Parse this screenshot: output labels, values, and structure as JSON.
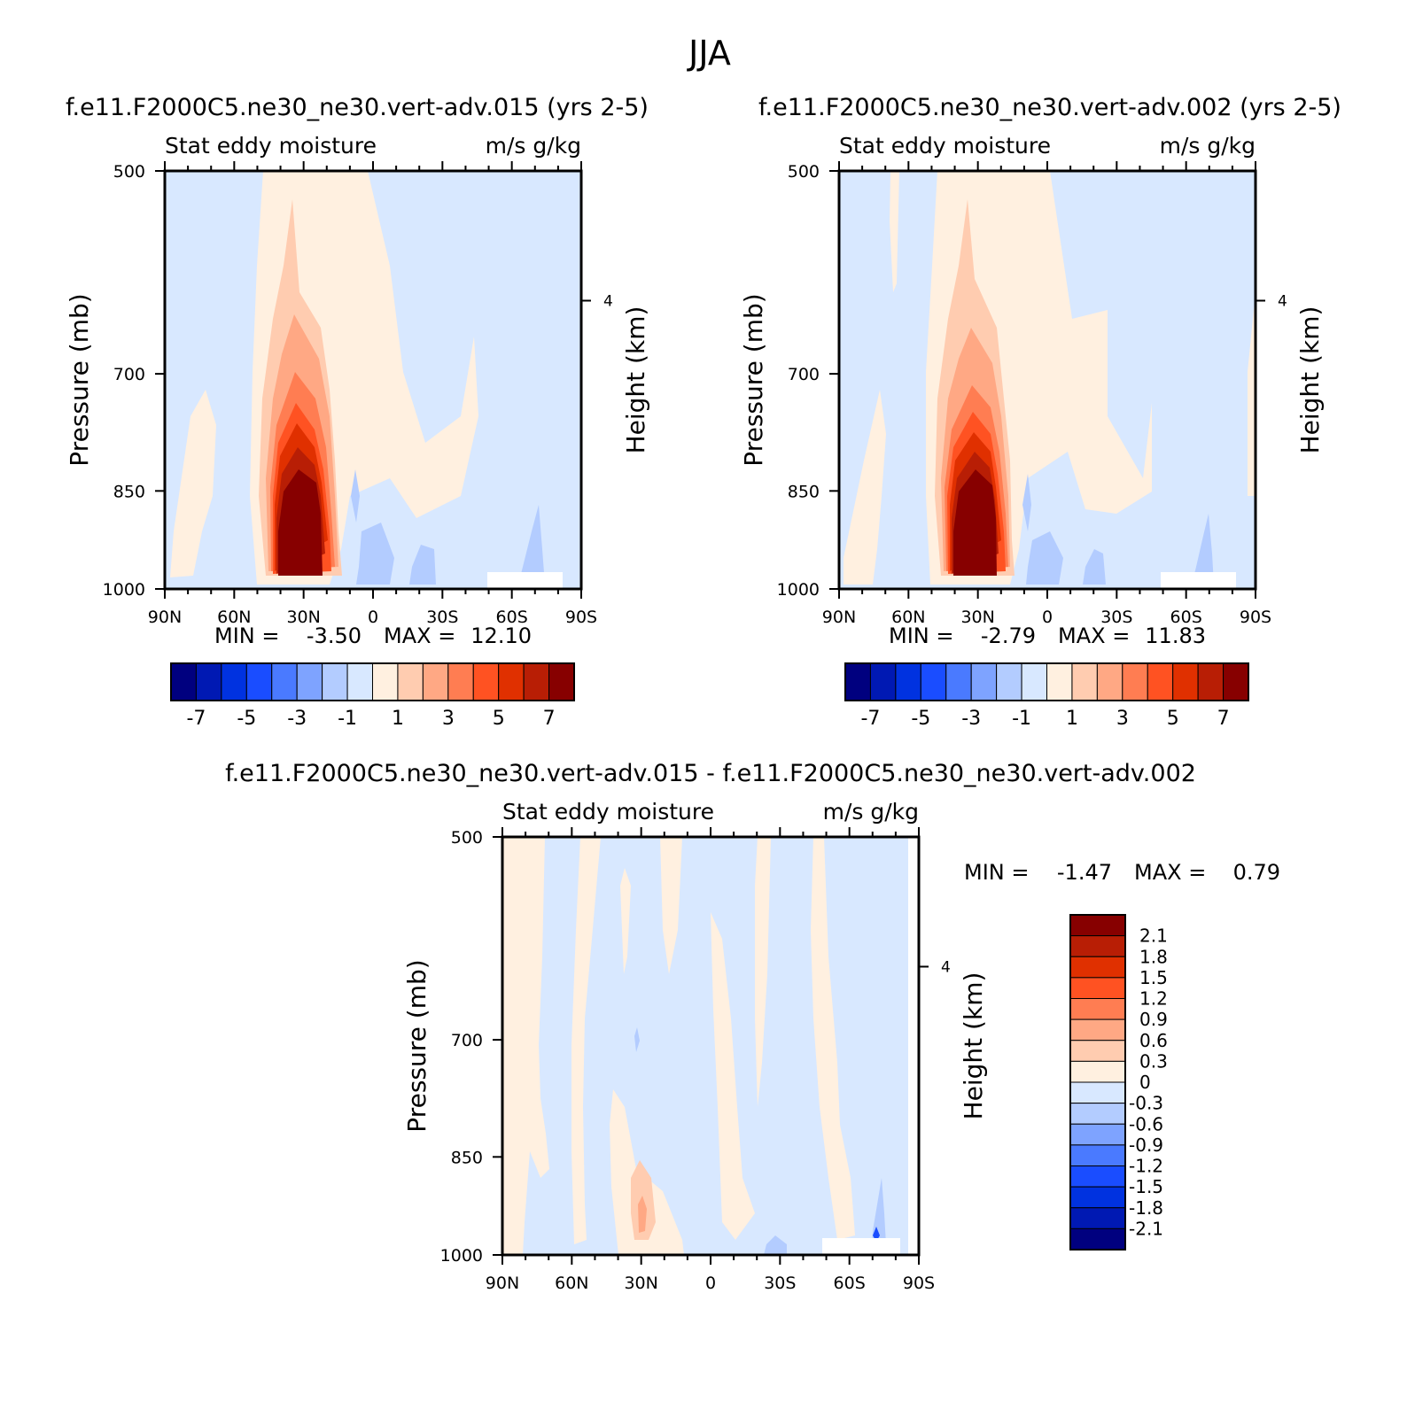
{
  "figure_title": "JJA",
  "chart_data": [
    {
      "type": "heatmap",
      "title": "f.e11.F2000C5.ne30_ne30.vert-adv.015 (yrs 2-5)",
      "subtitle_left": "Stat eddy moisture",
      "subtitle_right": "m/s g/kg",
      "xlabel": "",
      "ylabel": "Pressure (mb)",
      "ylabel_right": "Height (km)",
      "x_ticks": [
        "90N",
        "60N",
        "30N",
        "0",
        "30S",
        "60S",
        "90S"
      ],
      "x_values": [
        90,
        60,
        30,
        0,
        -30,
        -60,
        -90
      ],
      "y_ticks": [
        "500",
        "700",
        "850",
        "1000"
      ],
      "y_values": [
        500,
        700,
        850,
        1000
      ],
      "y_range": [
        500,
        1000
      ],
      "y_scale": "log",
      "right_ticks": [
        "4"
      ],
      "min_label": "MIN =",
      "min_value": "-3.50",
      "max_label": "MAX =",
      "max_value": "12.10",
      "colorbar": {
        "orientation": "horizontal",
        "labels": [
          "-7",
          "-5",
          "-3",
          "-1",
          "1",
          "3",
          "5",
          "7"
        ],
        "colors": [
          "#00007f",
          "#0019b3",
          "#0032e0",
          "#1a4dff",
          "#4a7aff",
          "#7ea3ff",
          "#b3ccff",
          "#d8e8ff",
          "#fff0e0",
          "#ffccb0",
          "#ffa884",
          "#ff7d52",
          "#ff5222",
          "#e03000",
          "#b81e05",
          "#870000"
        ]
      },
      "features": [
        {
          "name": "maximum",
          "lat": 30,
          "pressure_range": [
            850,
            1000
          ],
          "value": 12.1
        }
      ]
    },
    {
      "type": "heatmap",
      "title": "f.e11.F2000C5.ne30_ne30.vert-adv.002 (yrs 2-5)",
      "subtitle_left": "Stat eddy moisture",
      "subtitle_right": "m/s g/kg",
      "xlabel": "",
      "ylabel": "Pressure (mb)",
      "ylabel_right": "Height (km)",
      "x_ticks": [
        "90N",
        "60N",
        "30N",
        "0",
        "30S",
        "60S",
        "90S"
      ],
      "x_values": [
        90,
        60,
        30,
        0,
        -30,
        -60,
        -90
      ],
      "y_ticks": [
        "500",
        "700",
        "850",
        "1000"
      ],
      "y_values": [
        500,
        700,
        850,
        1000
      ],
      "y_range": [
        500,
        1000
      ],
      "y_scale": "log",
      "right_ticks": [
        "4"
      ],
      "min_label": "MIN =",
      "min_value": "-2.79",
      "max_label": "MAX =",
      "max_value": "11.83",
      "colorbar": {
        "orientation": "horizontal",
        "labels": [
          "-7",
          "-5",
          "-3",
          "-1",
          "1",
          "3",
          "5",
          "7"
        ],
        "colors": [
          "#00007f",
          "#0019b3",
          "#0032e0",
          "#1a4dff",
          "#4a7aff",
          "#7ea3ff",
          "#b3ccff",
          "#d8e8ff",
          "#fff0e0",
          "#ffccb0",
          "#ffa884",
          "#ff7d52",
          "#ff5222",
          "#e03000",
          "#b81e05",
          "#870000"
        ]
      },
      "features": [
        {
          "name": "maximum",
          "lat": 30,
          "pressure_range": [
            850,
            1000
          ],
          "value": 11.83
        }
      ]
    },
    {
      "type": "heatmap",
      "title": "f.e11.F2000C5.ne30_ne30.vert-adv.015 - f.e11.F2000C5.ne30_ne30.vert-adv.002",
      "subtitle_left": "Stat eddy moisture",
      "subtitle_right": "m/s g/kg",
      "xlabel": "",
      "ylabel": "Pressure (mb)",
      "ylabel_right": "Height (km)",
      "x_ticks": [
        "90N",
        "60N",
        "30N",
        "0",
        "30S",
        "60S",
        "90S"
      ],
      "x_values": [
        90,
        60,
        30,
        0,
        -30,
        -60,
        -90
      ],
      "y_ticks": [
        "500",
        "700",
        "850",
        "1000"
      ],
      "y_values": [
        500,
        700,
        850,
        1000
      ],
      "y_range": [
        500,
        1000
      ],
      "y_scale": "log",
      "right_ticks": [
        "4"
      ],
      "min_label": "MIN =",
      "min_value": "-1.47",
      "max_label": "MAX =",
      "max_value": "0.79",
      "colorbar": {
        "orientation": "vertical",
        "labels": [
          "2.1",
          "1.8",
          "1.5",
          "1.2",
          "0.9",
          "0.6",
          "0.3",
          "0",
          "-0.3",
          "-0.6",
          "-0.9",
          "-1.2",
          "-1.5",
          "-1.8",
          "-2.1"
        ],
        "colors": [
          "#870000",
          "#b81e05",
          "#e03000",
          "#ff5222",
          "#ff7d52",
          "#ffa884",
          "#ffccb0",
          "#fff0e0",
          "#d8e8ff",
          "#b3ccff",
          "#7ea3ff",
          "#4a7aff",
          "#1a4dff",
          "#0032e0",
          "#0019b3",
          "#00007f"
        ]
      }
    }
  ]
}
